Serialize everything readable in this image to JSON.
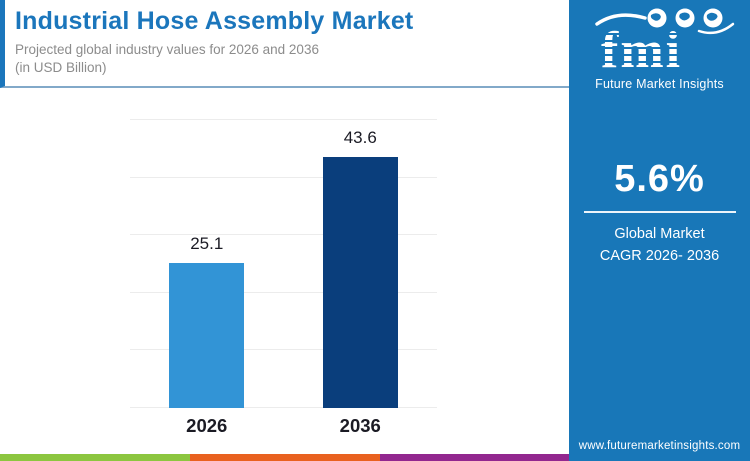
{
  "colors": {
    "title_blue": "#1B76BC",
    "panel_blue": "#1877B8",
    "divider_blue": "#82A9C9",
    "subtitle_gray": "#8C8C8C",
    "label_dark": "#1B1B24",
    "gridline": "#ECECEC",
    "stripe_green": "#8CC63F",
    "stripe_orange": "#E9611F",
    "stripe_purple": "#92278F"
  },
  "header": {
    "title": "Industrial Hose Assembly Market",
    "subtitle_line1": "Projected global industry values for 2026 and 2036",
    "subtitle_line2": "(in USD Billion)"
  },
  "panel": {
    "logo_text": "fmi",
    "logo_caption": "Future Market Insights",
    "cagr_value": "5.6%",
    "cagr_line1": "Global Market",
    "cagr_line2": "CAGR 2026- 2036",
    "website": "www.futuremarketinsights.com"
  },
  "chart_data": {
    "type": "bar",
    "title": "Industrial Hose Assembly Market",
    "subtitle": "Projected global industry values for 2026 and 2036 (in USD Billion)",
    "categories": [
      "2026",
      "2036"
    ],
    "values": [
      25.1,
      43.6
    ],
    "data_labels": [
      "25.1",
      "43.6"
    ],
    "bar_colors": [
      "#3294D6",
      "#0A3E7C"
    ],
    "xlabel": "",
    "ylabel": "",
    "ylim": [
      0,
      50
    ],
    "grid_step": 10,
    "grid": true,
    "legend": false
  }
}
